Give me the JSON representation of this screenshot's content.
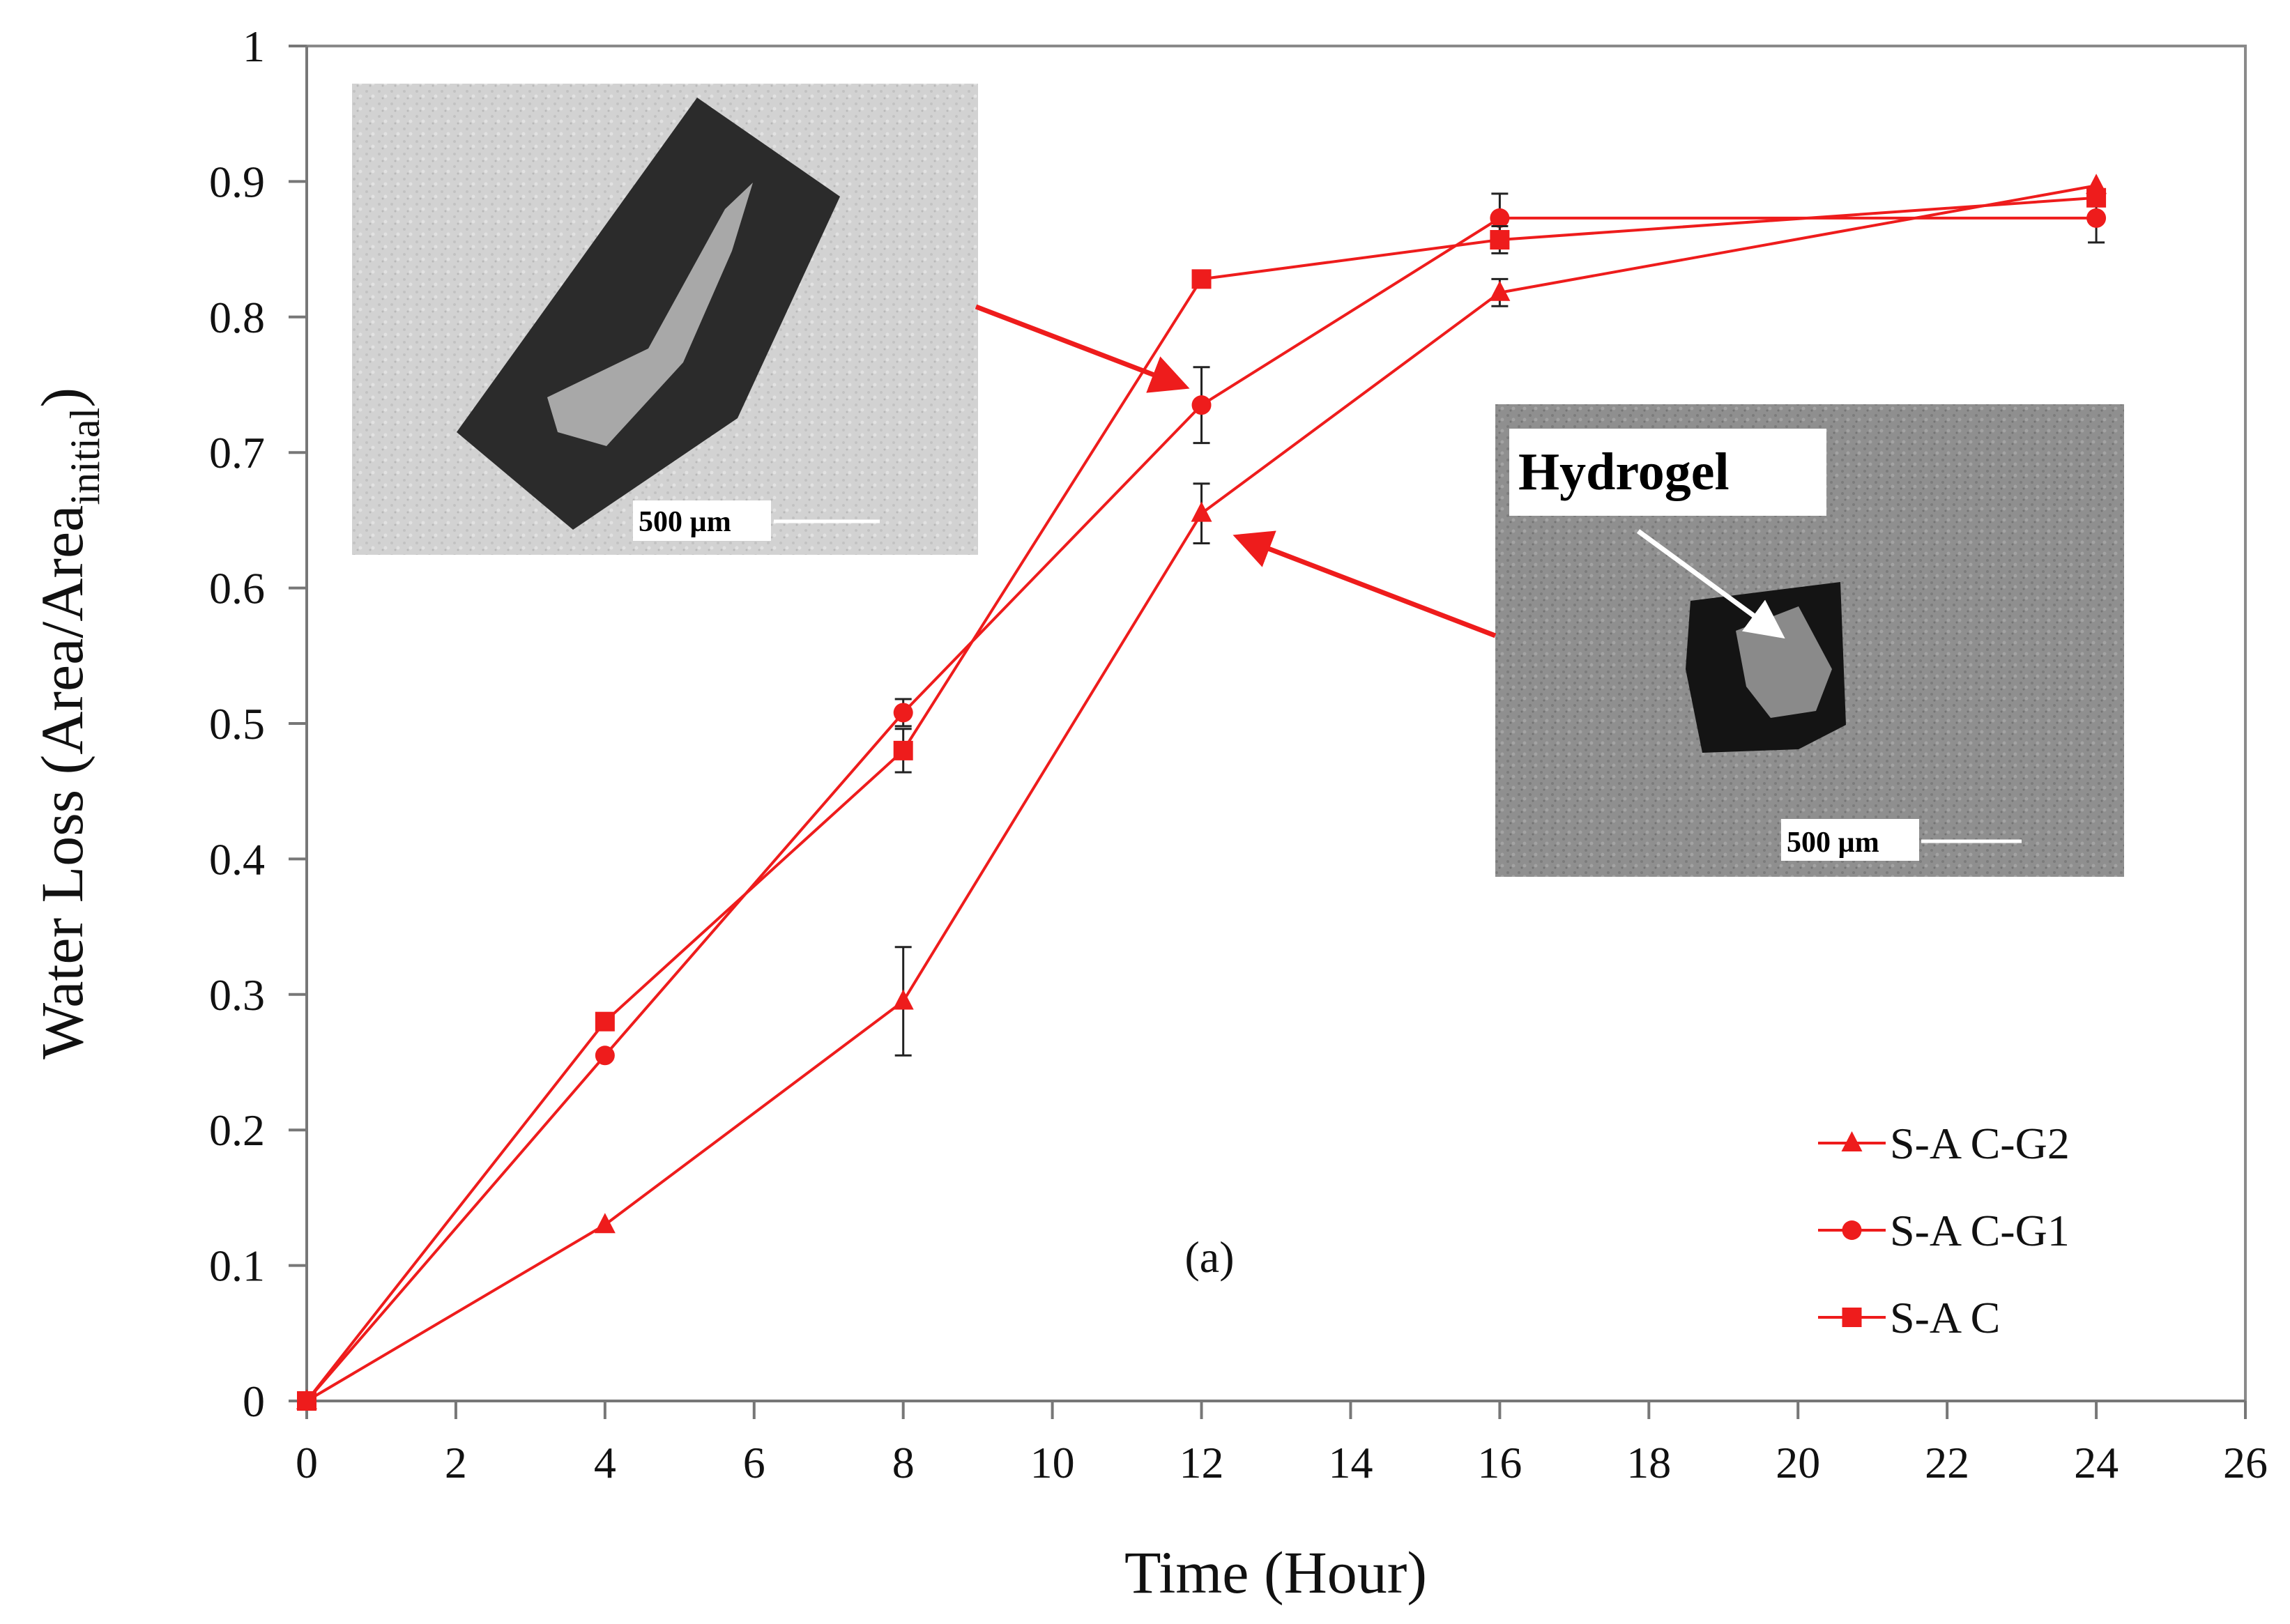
{
  "chart_data": {
    "type": "line",
    "xlabel": "Time (Hour)",
    "ylabel": {
      "main": "Water Loss (Area/Area",
      "subscript": "initial",
      "close": ")"
    },
    "xlim": [
      0,
      26
    ],
    "ylim": [
      0,
      1
    ],
    "xticks": [
      "0",
      "2",
      "4",
      "6",
      "8",
      "10",
      "12",
      "14",
      "16",
      "18",
      "20",
      "22",
      "24",
      "26"
    ],
    "yticks": [
      "0",
      "0.1",
      "0.2",
      "0.3",
      "0.4",
      "0.5",
      "0.6",
      "0.7",
      "0.8",
      "0.9",
      "1"
    ],
    "x": [
      0,
      4,
      8,
      12,
      16,
      24
    ],
    "series": [
      {
        "name": "S-A C-G2",
        "marker": "triangle",
        "color": "#ee1c1c",
        "values": [
          0,
          0.13,
          0.295,
          0.655,
          0.818,
          0.897
        ],
        "errors": [
          0,
          0,
          0.04,
          0.022,
          0.01,
          0
        ]
      },
      {
        "name": "S-A C-G1",
        "marker": "circle",
        "color": "#ee1c1c",
        "values": [
          0,
          0.255,
          0.508,
          0.735,
          0.873,
          0.873
        ],
        "errors": [
          0,
          0,
          0.01,
          0.028,
          0.018,
          0.018
        ]
      },
      {
        "name": "S-A C",
        "marker": "square",
        "color": "#ee1c1c",
        "values": [
          0,
          0.28,
          0.48,
          0.828,
          0.857,
          0.888
        ],
        "errors": [
          0,
          0,
          0.016,
          0,
          0.01,
          0
        ]
      }
    ],
    "legend_position": "bottom-right",
    "annotations": {
      "panel_label": "(a)",
      "inset1_scale": "500 µm",
      "inset2_scale": "500 µm",
      "inset2_label": "Hydrogel"
    },
    "grid": false
  }
}
